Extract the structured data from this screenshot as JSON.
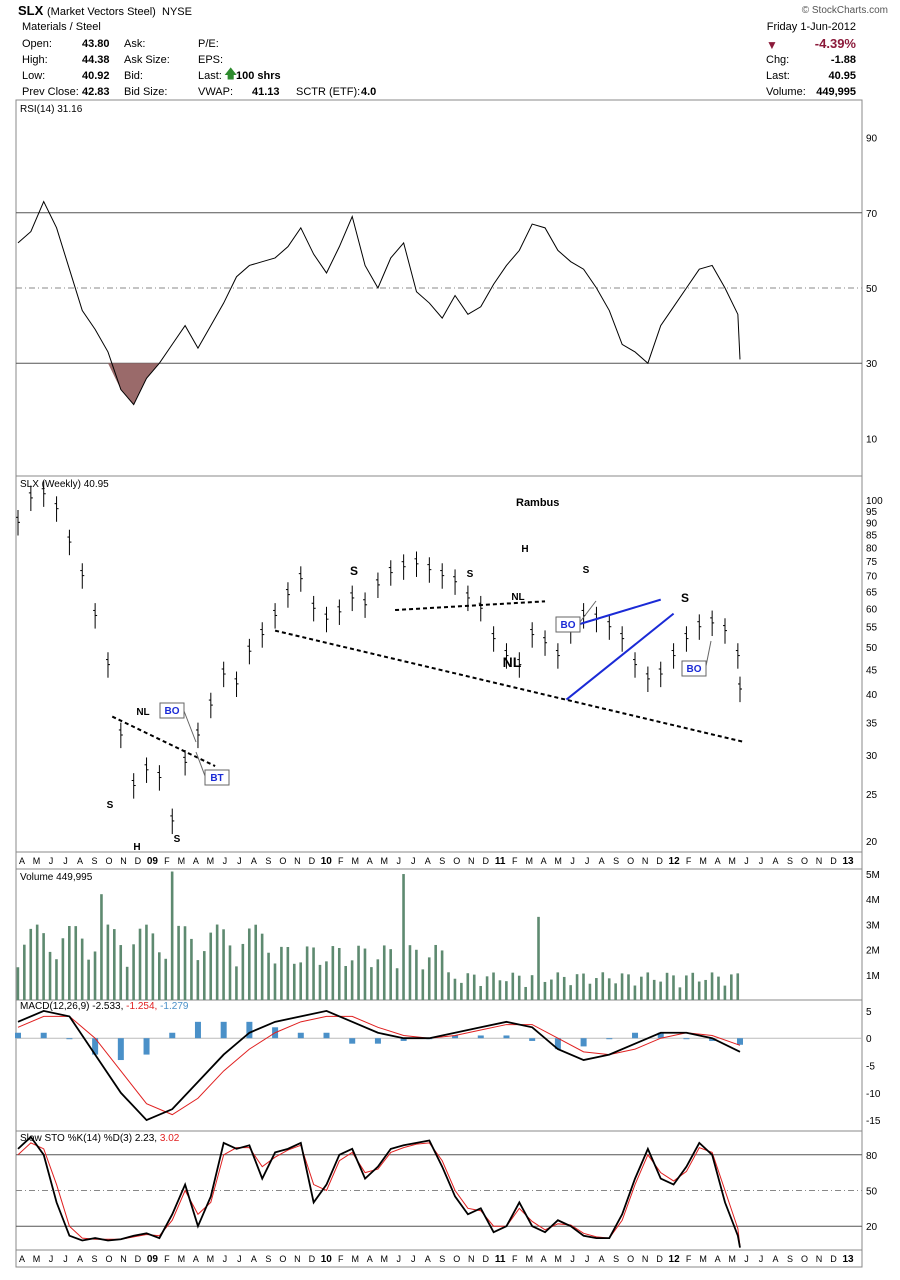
{
  "header": {
    "symbol": "SLX",
    "name": "(Market Vectors Steel)",
    "exchange": "NYSE",
    "credit": "© StockCharts.com",
    "sector": "Materials / Steel",
    "date": "Friday  1-Jun-2012",
    "pct_change": "-4.39%",
    "quote": [
      {
        "label": "Open:",
        "value": "43.80"
      },
      {
        "label": "High:",
        "value": "44.38"
      },
      {
        "label": "Low:",
        "value": "40.92"
      },
      {
        "label": "Prev Close:",
        "value": "42.83"
      }
    ],
    "quote2": [
      "Ask:",
      "Ask Size:",
      "Bid:",
      "Bid Size:"
    ],
    "quote3_labels": [
      "P/E:",
      "EPS:",
      "Last:",
      "VWAP:"
    ],
    "last_shares": "100 shrs",
    "vwap": "41.13",
    "sctr_label": "SCTR (ETF):",
    "sctr": "4.0",
    "right": [
      {
        "label": "Chg:",
        "value": "-1.88"
      },
      {
        "label": "Last:",
        "value": "40.95"
      },
      {
        "label": "Volume:",
        "value": "449,995"
      }
    ],
    "colors": {
      "negative": "#8b1a3a",
      "positive": "#2e8b2e"
    }
  },
  "chart_data": [
    {
      "type": "line",
      "panel": "rsi",
      "label": "RSI(14) 31.16",
      "ylim": [
        0,
        100
      ],
      "yticks": [
        90,
        70,
        50,
        30,
        10
      ],
      "x": [
        0,
        3,
        6,
        9,
        12,
        15,
        18,
        21,
        24,
        27,
        30,
        33,
        36,
        39,
        42,
        45,
        48,
        51,
        54,
        57,
        60,
        63,
        66,
        69,
        72,
        75,
        78,
        81,
        84,
        87,
        90,
        93,
        96,
        99,
        102,
        105,
        108,
        111,
        114,
        117,
        120,
        123,
        126,
        129,
        132,
        135,
        138,
        141,
        144,
        147,
        150,
        153,
        156,
        159,
        162,
        165,
        168,
        168.5
      ],
      "values": [
        62,
        65,
        73,
        66,
        55,
        44,
        39,
        33,
        23,
        19,
        26,
        30,
        35,
        40,
        34,
        40,
        46,
        53,
        56,
        57,
        58,
        61,
        66,
        59,
        54,
        61,
        69,
        56,
        50,
        58,
        62,
        49,
        46,
        42,
        48,
        43,
        45,
        51,
        56,
        60,
        67,
        66,
        60,
        57,
        55,
        50,
        44,
        35,
        33,
        30,
        40,
        45,
        50,
        55,
        56,
        50,
        43,
        31
      ],
      "colors": {
        "line": "#000000",
        "oversold_fill": "#9a6a6a"
      }
    },
    {
      "type": "bar",
      "panel": "price",
      "label": "SLX (Weekly) 40.95",
      "title": "Rambus",
      "scale": "log",
      "ylim": [
        19,
        112
      ],
      "yticks": [
        100,
        95,
        90,
        85,
        80,
        75,
        70,
        65,
        60,
        55,
        50,
        45,
        40,
        35,
        30,
        25,
        20
      ],
      "x": [
        0,
        3,
        6,
        9,
        12,
        15,
        18,
        21,
        24,
        27,
        30,
        33,
        36,
        39,
        42,
        45,
        48,
        51,
        54,
        57,
        60,
        63,
        66,
        69,
        72,
        75,
        78,
        81,
        84,
        87,
        90,
        93,
        96,
        99,
        102,
        105,
        108,
        111,
        114,
        117,
        120,
        123,
        126,
        129,
        132,
        135,
        138,
        141,
        144,
        147,
        150,
        153,
        156,
        159,
        162,
        165,
        168,
        168.5
      ],
      "values": [
        90,
        101,
        103,
        96,
        82,
        70,
        58,
        46,
        33,
        26,
        28,
        27,
        22,
        29,
        33,
        38,
        44,
        42,
        49,
        53,
        58,
        64,
        69,
        60,
        57,
        59,
        63,
        61,
        67,
        71,
        73,
        74,
        72,
        70,
        68,
        63,
        60,
        52,
        48,
        46,
        53,
        51,
        48,
        54,
        58,
        57,
        55,
        52,
        46,
        43,
        44,
        48,
        52,
        55,
        56,
        54,
        48,
        41
      ],
      "annotations": {
        "left_hs": [
          "S",
          "H",
          "S",
          "NL",
          "BO",
          "BT"
        ],
        "mid_hs": [
          "S",
          "NL"
        ],
        "top_hs": [
          "S",
          "H",
          "S",
          "NL",
          "BO"
        ],
        "wedge": [
          "S",
          "BO"
        ]
      },
      "colors": {
        "bars": "#000000",
        "wedge": "#1a2ad6",
        "badge_text": "#1a2ad6"
      }
    },
    {
      "type": "bar",
      "panel": "volume",
      "label": "Volume 449,995",
      "yticks": [
        "5M",
        "4M",
        "3M",
        "2M",
        "1M"
      ],
      "ylim": [
        0,
        5.2
      ],
      "colors": {
        "bars": "#5e8a70"
      }
    },
    {
      "type": "line",
      "panel": "macd",
      "label_main": "MACD(12,26,9) -2.533,",
      "label_signal": " -1.254,",
      "label_hist": " -1.279",
      "yticks": [
        5,
        0,
        -5,
        -10,
        -15
      ],
      "ylim": [
        -17,
        7
      ],
      "x": [
        0,
        6,
        12,
        18,
        24,
        30,
        36,
        42,
        48,
        54,
        60,
        66,
        72,
        78,
        84,
        90,
        96,
        102,
        108,
        114,
        120,
        126,
        132,
        138,
        144,
        150,
        156,
        162,
        168.5
      ],
      "macd": [
        3,
        5,
        4,
        -3,
        -10,
        -15,
        -13,
        -8,
        -3,
        1,
        3,
        4,
        5,
        3,
        1,
        0,
        0,
        1,
        2,
        3,
        2,
        -2,
        -4,
        -3,
        -1,
        1,
        1,
        0,
        -2.5
      ],
      "signal": [
        2,
        4,
        4,
        0,
        -6,
        -12,
        -14,
        -11,
        -6,
        -2,
        1,
        3,
        4,
        4,
        2,
        0.5,
        0,
        0.5,
        1.5,
        2.5,
        2.5,
        0,
        -2.5,
        -3,
        -2,
        0,
        1,
        0.5,
        -1.3
      ],
      "colors": {
        "macd": "#000000",
        "signal": "#e02020",
        "hist": "#4a90c8"
      }
    },
    {
      "type": "line",
      "panel": "stochastic",
      "label_main": "Slow STO %K(14) %D(3) 2.23,",
      "label_signal": " 3.02",
      "yticks": [
        80,
        50,
        20
      ],
      "ylim": [
        0,
        100
      ],
      "x": [
        0,
        3,
        6,
        9,
        12,
        15,
        18,
        21,
        24,
        27,
        30,
        33,
        36,
        39,
        42,
        45,
        48,
        51,
        54,
        57,
        60,
        63,
        66,
        69,
        72,
        75,
        78,
        81,
        84,
        87,
        90,
        93,
        96,
        99,
        102,
        105,
        108,
        111,
        114,
        117,
        120,
        123,
        126,
        129,
        132,
        135,
        138,
        141,
        144,
        147,
        150,
        153,
        156,
        159,
        162,
        165,
        168,
        168.5
      ],
      "k": [
        85,
        95,
        80,
        40,
        12,
        8,
        10,
        8,
        9,
        12,
        14,
        10,
        30,
        55,
        20,
        45,
        90,
        85,
        88,
        60,
        82,
        85,
        90,
        40,
        55,
        80,
        85,
        60,
        70,
        85,
        88,
        90,
        92,
        70,
        45,
        30,
        35,
        15,
        20,
        40,
        20,
        15,
        25,
        20,
        12,
        10,
        10,
        30,
        60,
        85,
        60,
        55,
        70,
        90,
        80,
        40,
        12,
        2
      ],
      "d": [
        80,
        90,
        85,
        55,
        20,
        10,
        9,
        9,
        9,
        11,
        13,
        12,
        25,
        50,
        30,
        40,
        80,
        86,
        86,
        70,
        78,
        84,
        88,
        55,
        50,
        75,
        82,
        65,
        68,
        82,
        86,
        89,
        90,
        75,
        50,
        35,
        33,
        20,
        20,
        35,
        24,
        17,
        22,
        21,
        14,
        11,
        10,
        25,
        55,
        80,
        65,
        58,
        66,
        86,
        82,
        50,
        18,
        3
      ],
      "colors": {
        "k": "#000000",
        "d": "#e02020"
      }
    }
  ],
  "x_axis": {
    "labels": [
      "A",
      "M",
      "J",
      "J",
      "A",
      "S",
      "O",
      "N",
      "D",
      "09",
      "F",
      "M",
      "A",
      "M",
      "J",
      "J",
      "A",
      "S",
      "O",
      "N",
      "D",
      "10",
      "F",
      "M",
      "A",
      "M",
      "J",
      "J",
      "A",
      "S",
      "O",
      "N",
      "D",
      "11",
      "F",
      "M",
      "A",
      "M",
      "J",
      "J",
      "A",
      "S",
      "O",
      "N",
      "D",
      "12",
      "F",
      "M",
      "A",
      "M",
      "J",
      "J",
      "A",
      "S",
      "O",
      "N",
      "D",
      "13"
    ]
  }
}
